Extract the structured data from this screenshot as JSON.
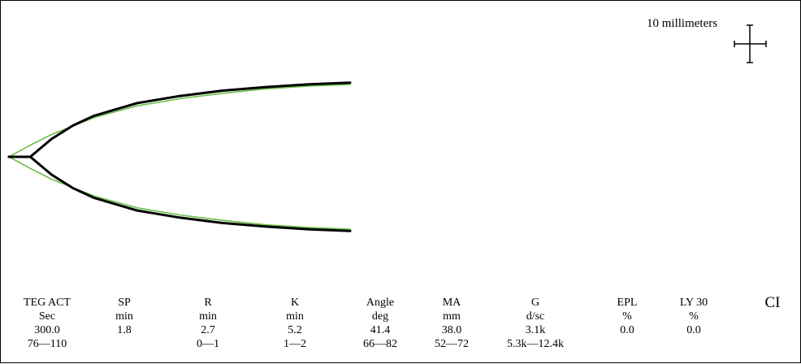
{
  "scale_bar": {
    "label": "10 millimeters"
  },
  "chart_data": {
    "type": "line",
    "title": "",
    "xlabel": "",
    "ylabel": "",
    "series": [
      {
        "name": "",
        "color": "#6abf4b",
        "role": "reference",
        "x": [
          0,
          1,
          2,
          4,
          6,
          8,
          10,
          12,
          14,
          16
        ],
        "y": [
          0,
          13,
          25,
          44,
          57,
          65,
          71,
          76,
          79,
          81
        ]
      },
      {
        "name": "",
        "color": "#000000",
        "role": "patient",
        "x": [
          0,
          1,
          2,
          3,
          4,
          6,
          8,
          10,
          12,
          14,
          16
        ],
        "y": [
          0,
          0,
          20,
          35,
          46,
          60,
          68,
          74,
          78,
          81,
          83
        ]
      }
    ]
  },
  "parameters": [
    {
      "name": "TEG ACT",
      "unit": "Sec",
      "value": "300.0",
      "range": "76—110"
    },
    {
      "name": "SP",
      "unit": "min",
      "value": "1.8",
      "range": ""
    },
    {
      "name": "R",
      "unit": "min",
      "value": "2.7",
      "range": "0—1"
    },
    {
      "name": "K",
      "unit": "min",
      "value": "5.2",
      "range": "1—2"
    },
    {
      "name": "Angle",
      "unit": "deg",
      "value": "41.4",
      "range": "66—82"
    },
    {
      "name": "MA",
      "unit": "mm",
      "value": "38.0",
      "range": "52—72"
    },
    {
      "name": "G",
      "unit": "d/sc",
      "value": "3.1k",
      "range": "5.3k—12.4k"
    },
    {
      "name": "EPL",
      "unit": "%",
      "value": "0.0",
      "range": ""
    },
    {
      "name": "LY 30",
      "unit": "%",
      "value": "0.0",
      "range": ""
    },
    {
      "name": "CI",
      "unit": "",
      "value": "",
      "range": ""
    }
  ]
}
